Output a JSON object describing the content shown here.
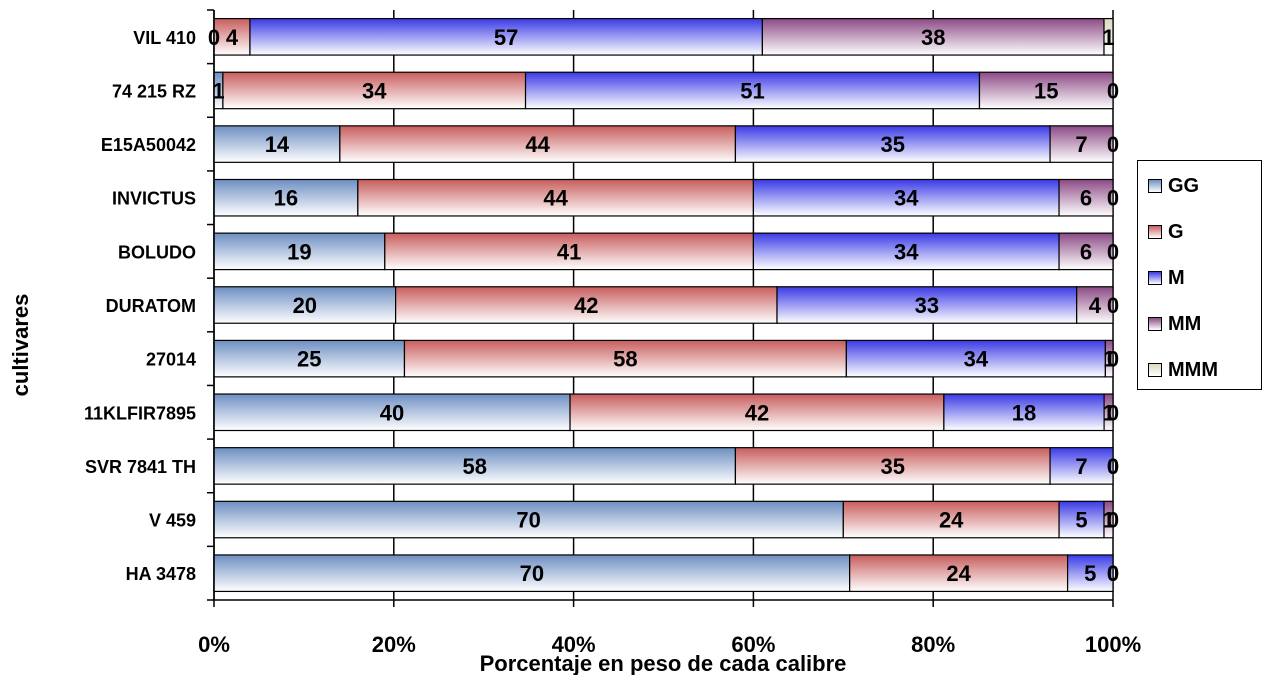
{
  "chart_data": {
    "type": "bar",
    "orientation": "horizontal",
    "stacked": "percent",
    "xlabel": "Porcentaje en peso de cada calibre",
    "ylabel": "cultivares",
    "x_ticks": [
      "0%",
      "20%",
      "40%",
      "60%",
      "80%",
      "100%"
    ],
    "xlim": [
      0,
      100
    ],
    "legend_position": "right",
    "categories": [
      "VIL 410",
      "74 215 RZ",
      "E15A50042",
      "INVICTUS",
      "BOLUDO",
      "DURATOM",
      "27014",
      "11KLFIR7895",
      "SVR 7841 TH",
      "V 459",
      "HA 3478"
    ],
    "series": [
      {
        "name": "GG",
        "color": "#6d8fc2",
        "values": [
          0,
          1,
          14,
          16,
          19,
          20,
          25,
          40,
          58,
          70,
          70
        ]
      },
      {
        "name": "G",
        "color": "#c85d5d",
        "values": [
          4,
          34,
          44,
          44,
          41,
          42,
          58,
          42,
          35,
          24,
          24
        ]
      },
      {
        "name": "M",
        "color": "#3a3ae6",
        "values": [
          57,
          51,
          35,
          34,
          34,
          33,
          34,
          18,
          7,
          5,
          5
        ]
      },
      {
        "name": "MM",
        "color": "#8c4a86",
        "values": [
          38,
          15,
          7,
          6,
          6,
          4,
          1,
          1,
          0,
          1,
          0
        ]
      },
      {
        "name": "MMM",
        "color": "#ddd8c0",
        "values": [
          1,
          0,
          0,
          0,
          0,
          0,
          0,
          0,
          0,
          0,
          0
        ]
      }
    ]
  }
}
